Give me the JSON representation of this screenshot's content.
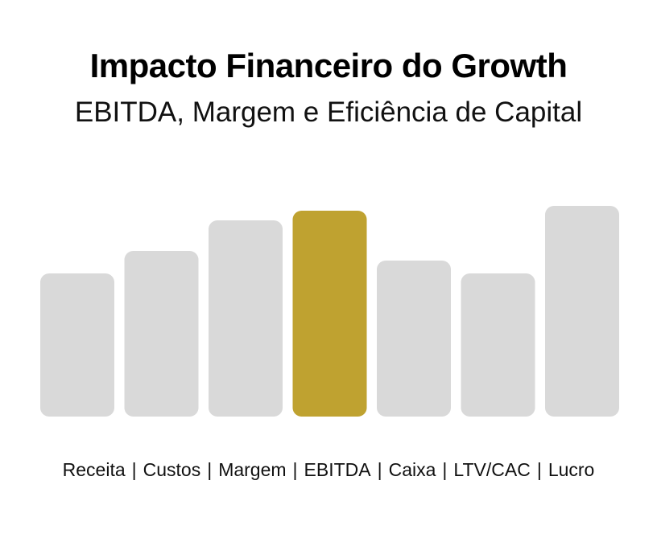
{
  "header": {
    "title": "Impacto Financeiro do Growth",
    "subtitle": "EBITDA, Margem e Eficiência de Capital"
  },
  "colors": {
    "bar": "#d9d9d9",
    "highlight": "#bfa230"
  },
  "chart_data": {
    "type": "bar",
    "title": "Impacto Financeiro do Growth",
    "subtitle": "EBITDA, Margem e Eficiência de Capital",
    "categories": [
      "Receita",
      "Custos",
      "Margem",
      "EBITDA",
      "Caixa",
      "LTV/CAC",
      "Lucro"
    ],
    "values": [
      178,
      206,
      244,
      256,
      194,
      178,
      262
    ],
    "highlight_index": 3,
    "ylim": [
      0,
      262
    ],
    "xlabel": "",
    "ylabel": "",
    "grid": false,
    "axes_visible": false,
    "label_separator": "|"
  }
}
